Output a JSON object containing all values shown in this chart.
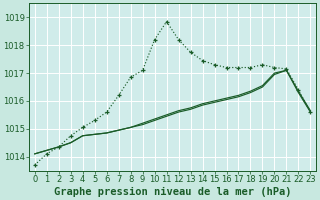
{
  "background_color": "#c8e8e0",
  "plot_bg_color": "#d0ecea",
  "grid_color": "#b8d8d0",
  "title": "Graphe pression niveau de la mer (hPa)",
  "title_fontsize": 7.5,
  "xlim": [
    -0.5,
    23.5
  ],
  "ylim": [
    1013.5,
    1019.5
  ],
  "yticks": [
    1014,
    1015,
    1016,
    1017,
    1018,
    1019
  ],
  "xticks": [
    0,
    1,
    2,
    3,
    4,
    5,
    6,
    7,
    8,
    9,
    10,
    11,
    12,
    13,
    14,
    15,
    16,
    17,
    18,
    19,
    20,
    21,
    22,
    23
  ],
  "line1_x": [
    0,
    1,
    2,
    3,
    4,
    5,
    6,
    7,
    8,
    9,
    10,
    11,
    12,
    13,
    14,
    15,
    16,
    17,
    18,
    19,
    20,
    21,
    22,
    23
  ],
  "line1_y": [
    1013.7,
    1014.1,
    1014.35,
    1014.75,
    1015.05,
    1015.3,
    1015.6,
    1016.2,
    1016.85,
    1017.1,
    1018.2,
    1018.85,
    1018.2,
    1017.75,
    1017.45,
    1017.3,
    1017.2,
    1017.2,
    1017.2,
    1017.3,
    1017.2,
    1017.15,
    1016.4,
    1015.6
  ],
  "line2_x": [
    0,
    2,
    3,
    4,
    5,
    6,
    7,
    8,
    9,
    10,
    11,
    12,
    13,
    14,
    15,
    16,
    17,
    18,
    19,
    20,
    21,
    22,
    23
  ],
  "line2_y": [
    1014.1,
    1014.35,
    1014.5,
    1014.75,
    1014.8,
    1014.85,
    1014.95,
    1015.05,
    1015.15,
    1015.3,
    1015.45,
    1015.6,
    1015.7,
    1015.85,
    1015.95,
    1016.05,
    1016.15,
    1016.3,
    1016.5,
    1016.95,
    1017.1,
    1016.3,
    1015.6
  ],
  "line3_x": [
    0,
    2,
    3,
    4,
    5,
    6,
    7,
    8,
    9,
    10,
    11,
    12,
    13,
    14,
    15,
    16,
    17,
    18,
    19,
    20,
    21,
    22,
    23
  ],
  "line3_y": [
    1014.1,
    1014.35,
    1014.5,
    1014.75,
    1014.8,
    1014.85,
    1014.95,
    1015.05,
    1015.2,
    1015.35,
    1015.5,
    1015.65,
    1015.75,
    1015.9,
    1016.0,
    1016.1,
    1016.2,
    1016.35,
    1016.55,
    1017.0,
    1017.1,
    1016.35,
    1015.65
  ],
  "line_color": "#1a5c28",
  "tick_fontsize": 6.0,
  "tick_color": "#1a5c28",
  "xlabel_color": "#1a5c28",
  "fig_width": 3.2,
  "fig_height": 2.0
}
